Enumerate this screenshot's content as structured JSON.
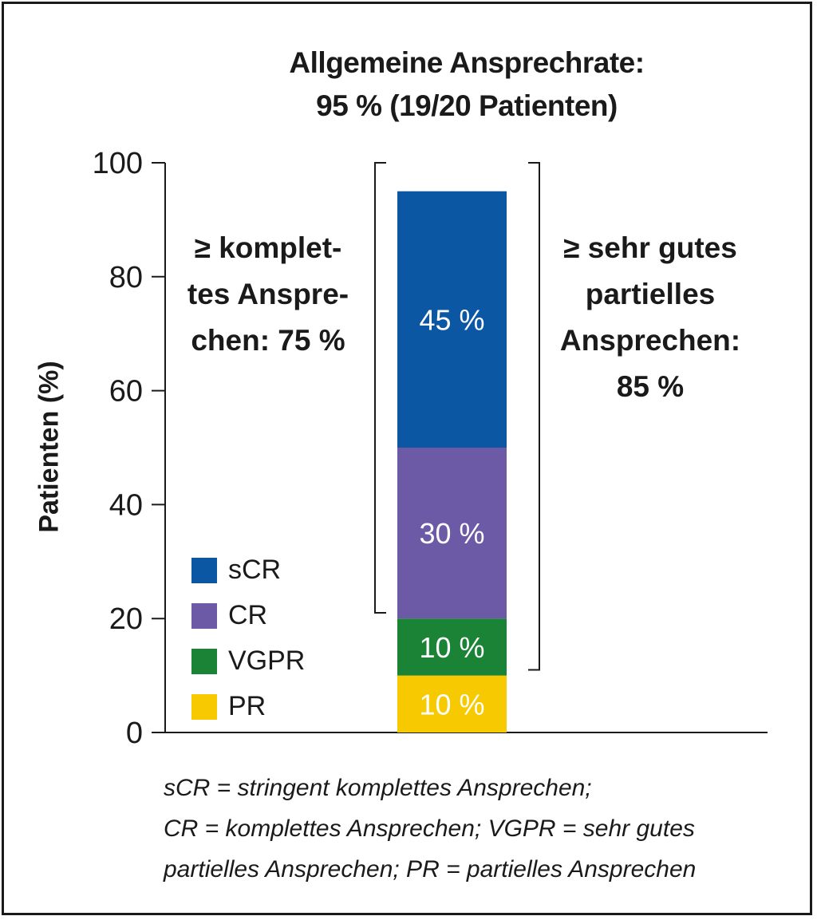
{
  "chart_data": {
    "type": "bar",
    "stacked": true,
    "title": [
      "Allgemeine Ansprechrate:",
      "95 % (19/20 Patienten)"
    ],
    "ylabel": "Patienten (%)",
    "ylim": [
      0,
      100
    ],
    "yticks": [
      "0",
      "20",
      "40",
      "60",
      "80",
      "100"
    ],
    "series": [
      {
        "name": "PR",
        "value": 10,
        "label": "10 %",
        "color": "#f7c900"
      },
      {
        "name": "VGPR",
        "value": 10,
        "label": "10 %",
        "color": "#1a8336"
      },
      {
        "name": "CR",
        "value": 30,
        "label": "30 %",
        "color": "#6c5aa6"
      },
      {
        "name": "sCR",
        "value": 45,
        "label": "45 %",
        "color": "#0b57a4"
      }
    ],
    "annotations": {
      "left_bracket": {
        "text": [
          "≥ komplet-",
          "tes Anspre-",
          "chen: 75 %"
        ],
        "from": 21,
        "to": 100
      },
      "right_bracket": {
        "text": [
          "≥ sehr gutes",
          "partielles",
          "Ansprechen:",
          "85 %"
        ],
        "from": 11,
        "to": 100
      }
    },
    "legend": [
      "sCR",
      "CR",
      "VGPR",
      "PR"
    ],
    "legend_position": "bottom-left",
    "grid": false
  },
  "note": [
    "sCR = stringent komplettes Ansprechen;",
    "CR = komplettes Ansprechen; VGPR = sehr gutes",
    "partielles Ansprechen; PR = partielles Ansprechen"
  ]
}
